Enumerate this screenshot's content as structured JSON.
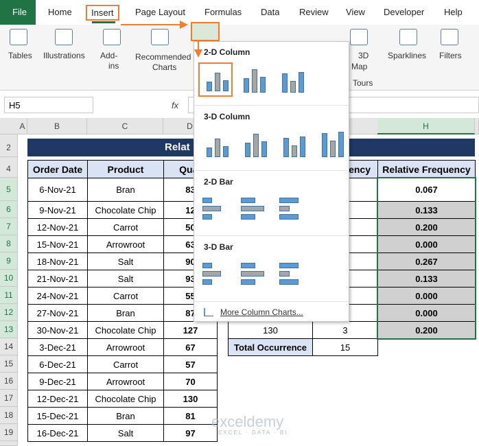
{
  "ribbon": {
    "tabs": [
      "File",
      "Home",
      "Insert",
      "Page Layout",
      "Formulas",
      "Data",
      "Review",
      "View",
      "Developer",
      "Help"
    ],
    "groups": [
      "Tables",
      "Illustrations",
      "Add-",
      "ins",
      "Recommended",
      "Charts",
      "3D",
      "Map",
      "Tours",
      "Sparklines",
      "Filters"
    ]
  },
  "name_box": "H5",
  "fx": "fx",
  "columns": [
    "A",
    "B",
    "C",
    "D",
    "H"
  ],
  "rows": [
    "2",
    "4",
    "5",
    "6",
    "7",
    "8",
    "9",
    "10",
    "11",
    "12",
    "13",
    "14",
    "15",
    "16",
    "17",
    "18",
    "19"
  ],
  "table": {
    "title": "Relat",
    "headers": [
      "Order Date",
      "Product",
      "Quar"
    ],
    "rows": [
      [
        "6-Nov-21",
        "Bran",
        "83"
      ],
      [
        "9-Nov-21",
        "Chocolate Chip",
        "12"
      ],
      [
        "12-Nov-21",
        "Carrot",
        "50"
      ],
      [
        "15-Nov-21",
        "Arrowroot",
        "63"
      ],
      [
        "18-Nov-21",
        "Salt",
        "90"
      ],
      [
        "21-Nov-21",
        "Salt",
        "93"
      ],
      [
        "24-Nov-21",
        "Carrot",
        "55"
      ],
      [
        "27-Nov-21",
        "Bran",
        "87"
      ],
      [
        "30-Nov-21",
        "Chocolate Chip",
        "127"
      ],
      [
        "3-Dec-21",
        "Arrowroot",
        "67"
      ],
      [
        "6-Dec-21",
        "Carrot",
        "57"
      ],
      [
        "9-Dec-21",
        "Arrowroot",
        "70"
      ],
      [
        "12-Dec-21",
        "Chocolate Chip",
        "130"
      ],
      [
        "15-Dec-21",
        "Bran",
        "81"
      ],
      [
        "16-Dec-21",
        "Salt",
        "97"
      ]
    ]
  },
  "freq_table": {
    "header": "ency",
    "relative_header": "Relative Frequency",
    "last_row": [
      "130",
      "3"
    ],
    "total": [
      "Total Occurrence",
      "15"
    ],
    "relative": [
      "0.067",
      "0.133",
      "0.200",
      "0.000",
      "0.267",
      "0.133",
      "0.000",
      "0.000",
      "0.200"
    ]
  },
  "dropdown": {
    "sections": [
      "2-D Column",
      "3-D Column",
      "2-D Bar",
      "3-D Bar"
    ],
    "more": "More Column Charts..."
  },
  "watermark": {
    "name": "exceldemy",
    "tagline": "EXCEL · DATA · BI"
  }
}
